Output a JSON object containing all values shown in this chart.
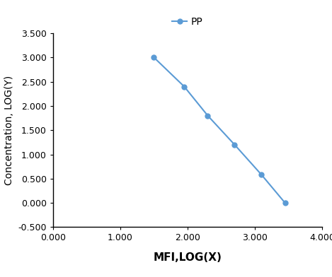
{
  "x_data": [
    1.5,
    1.95,
    2.3,
    2.7,
    3.1,
    3.45
  ],
  "y_data": [
    3.0,
    2.4,
    1.8,
    1.2,
    0.58,
    0.0
  ],
  "line_color": "#5b9bd5",
  "marker": "o",
  "marker_size": 5,
  "line_width": 1.5,
  "xlabel": "MFI,LOG(X)",
  "ylabel": "Concentration, LOG(Y)",
  "xlim": [
    0.0,
    4.0
  ],
  "ylim": [
    -0.5,
    3.5
  ],
  "xticks": [
    0.0,
    1.0,
    2.0,
    3.0,
    4.0
  ],
  "yticks": [
    -0.5,
    0.0,
    0.5,
    1.0,
    1.5,
    2.0,
    2.5,
    3.0,
    3.5
  ],
  "legend_label": "PP",
  "background_color": "#ffffff",
  "xlabel_fontsize": 11,
  "ylabel_fontsize": 10,
  "tick_fontsize": 9,
  "legend_fontsize": 10
}
